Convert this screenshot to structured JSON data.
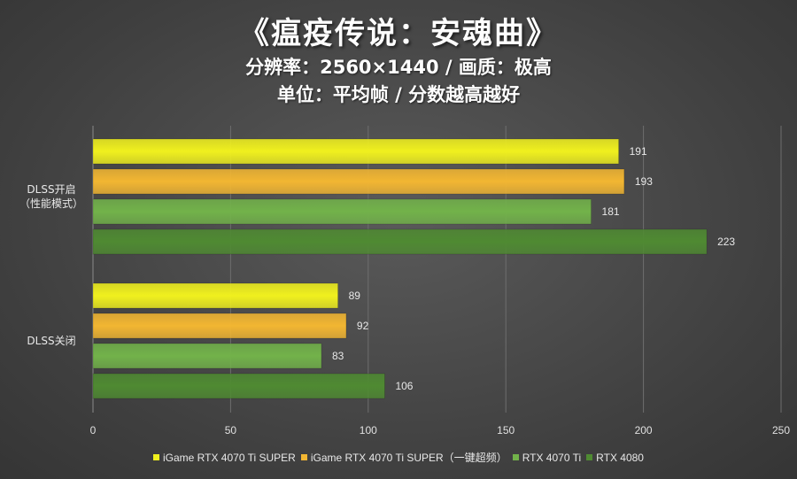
{
  "chart_data": {
    "type": "bar",
    "orientation": "horizontal",
    "title": "《瘟疫传说：安魂曲》",
    "subtitle_lines": [
      "分辨率：2560×1440 / 画质：极高",
      "单位：平均帧 / 分数越高越好"
    ],
    "categories": [
      "DLSS开启\n（性能模式）",
      "DLSS关闭"
    ],
    "series": [
      {
        "name": "iGame RTX 4070 Ti SUPER",
        "color": "#f0f01e",
        "values": [
          191,
          89
        ]
      },
      {
        "name": "iGame RTX 4070 Ti SUPER（一键超频）",
        "color": "#f2b632",
        "values": [
          193,
          92
        ]
      },
      {
        "name": "RTX 4070 Ti",
        "color": "#72b24a",
        "values": [
          181,
          83
        ]
      },
      {
        "name": "RTX 4080",
        "color": "#4f8a32",
        "values": [
          223,
          106
        ]
      }
    ],
    "xlim": [
      0,
      250
    ],
    "xticks": [
      0,
      50,
      100,
      150,
      200,
      250
    ],
    "grid": true,
    "legend_position": "bottom"
  }
}
